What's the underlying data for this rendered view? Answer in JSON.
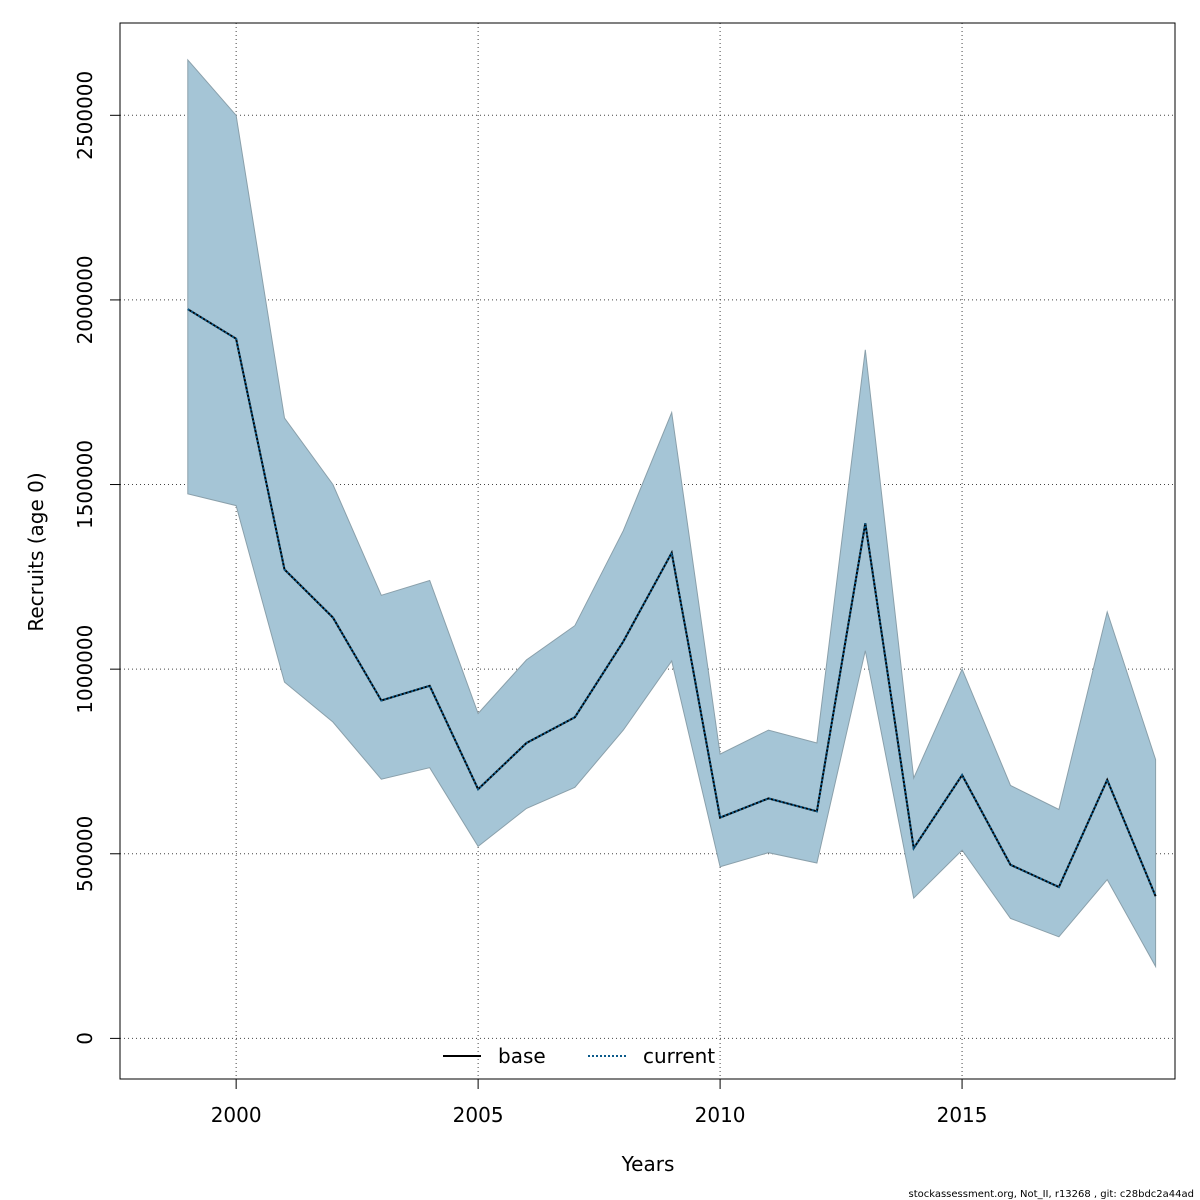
{
  "chart_data": {
    "type": "line",
    "xlabel": "Years",
    "ylabel": "Recruits (age 0)",
    "xlim": [
      1997.6,
      2019.4
    ],
    "ylim": [
      -110000,
      2750000
    ],
    "x_ticks": [
      2000,
      2005,
      2010,
      2015
    ],
    "x_tick_labels": [
      "2000",
      "2005",
      "2010",
      "2015"
    ],
    "y_ticks": [
      0,
      500000,
      1000000,
      1500000,
      2000000,
      2500000
    ],
    "y_tick_labels": [
      "0",
      "500000",
      "1000000",
      "1500000",
      "2000000",
      "2500000"
    ],
    "grid": true,
    "legend_position": "bottom-center",
    "x": [
      1999,
      2000,
      2001,
      2002,
      2003,
      2004,
      2005,
      2006,
      2007,
      2008,
      2009,
      2010,
      2011,
      2012,
      2013,
      2014,
      2015,
      2016,
      2017,
      2018,
      2019
    ],
    "series": [
      {
        "name": "base",
        "line_style": "solid",
        "color": "#000000",
        "values": [
          1975000,
          1895000,
          1270000,
          1140000,
          915000,
          955000,
          675000,
          800000,
          870000,
          1075000,
          1315000,
          598000,
          650000,
          615000,
          1395000,
          515000,
          713000,
          470000,
          410000,
          700000,
          385000
        ]
      },
      {
        "name": "current",
        "line_style": "dotted",
        "color": "#0b5a8a",
        "values": [
          1975000,
          1895000,
          1270000,
          1140000,
          915000,
          955000,
          675000,
          800000,
          870000,
          1075000,
          1315000,
          598000,
          650000,
          615000,
          1395000,
          515000,
          713000,
          470000,
          410000,
          700000,
          385000
        ]
      }
    ],
    "band": {
      "color": "#a5c5d6",
      "edge_color": "#8aa0ab",
      "lower": [
        1475000,
        1443000,
        965000,
        857000,
        702000,
        733000,
        520000,
        623000,
        680000,
        835000,
        1022000,
        465000,
        503000,
        475000,
        1050000,
        380000,
        510000,
        325000,
        275000,
        430000,
        195000
      ],
      "upper": [
        2650000,
        2500000,
        1680000,
        1500000,
        1200000,
        1240000,
        880000,
        1025000,
        1118000,
        1375000,
        1695000,
        770000,
        835000,
        800000,
        1865000,
        705000,
        1000000,
        685000,
        620000,
        1155000,
        755000
      ]
    }
  },
  "footer": "stockassessment.org, Not_II, r13268 , git: c28bdc2a44ad"
}
